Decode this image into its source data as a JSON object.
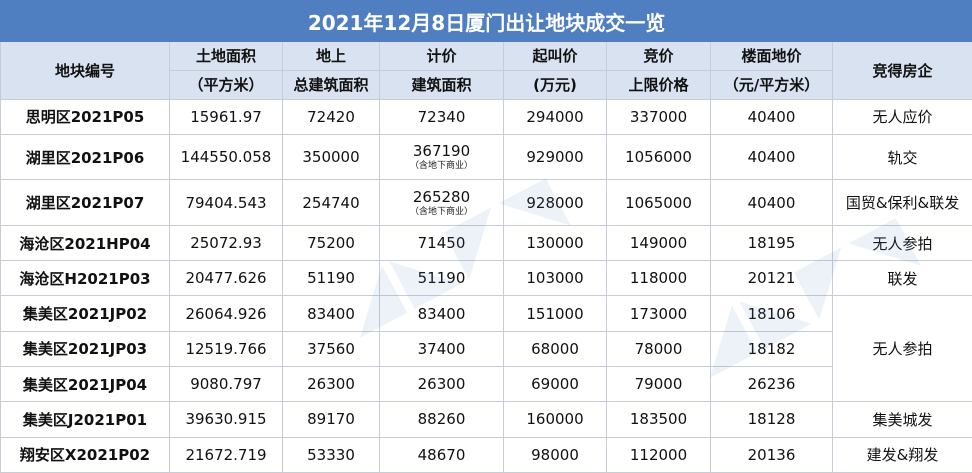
{
  "title": "2021年12月8日厦门出让地块成交一览",
  "headers": [
    {
      "line1": "地块编号",
      "line2": ""
    },
    {
      "line1": "土地面积",
      "line2": "（平方米）"
    },
    {
      "line1": "地上",
      "line2": "总建筑面积"
    },
    {
      "line1": "计价",
      "line2": "建筑面积"
    },
    {
      "line1": "起叫价",
      "line2": "(万元)"
    },
    {
      "line1": "竞价",
      "line2": "上限价格"
    },
    {
      "line1": "楼面地价",
      "line2": "（元/平方米）"
    },
    {
      "line1": "竞得房企",
      "line2": ""
    }
  ],
  "rows": [
    {
      "code": "思明区2021P05",
      "area": "15961.97",
      "gfa": "72420",
      "priced": "72340",
      "priced_note": "",
      "start": "294000",
      "cap": "337000",
      "floor": "40400",
      "winner": "无人应价"
    },
    {
      "code": "湖里区2021P06",
      "area": "144550.058",
      "gfa": "350000",
      "priced": "367190",
      "priced_note": "（含地下商业）",
      "start": "929000",
      "cap": "1056000",
      "floor": "40400",
      "winner": "轨交"
    },
    {
      "code": "湖里区2021P07",
      "area": "79404.543",
      "gfa": "254740",
      "priced": "265280",
      "priced_note": "（含地下商业）",
      "start": "928000",
      "cap": "1065000",
      "floor": "40400",
      "winner": "国贸&保利&联发"
    },
    {
      "code": "海沧区2021HP04",
      "area": "25072.93",
      "gfa": "75200",
      "priced": "71450",
      "priced_note": "",
      "start": "130000",
      "cap": "149000",
      "floor": "18195",
      "winner": "无人参拍"
    },
    {
      "code": "海沧区H2021P03",
      "area": "20477.626",
      "gfa": "51190",
      "priced": "51190",
      "priced_note": "",
      "start": "103000",
      "cap": "118000",
      "floor": "20121",
      "winner": "联发"
    },
    {
      "code": "集美区2021JP02",
      "area": "26064.926",
      "gfa": "83400",
      "priced": "83400",
      "priced_note": "",
      "start": "151000",
      "cap": "173000",
      "floor": "18106",
      "winner": "无人参拍"
    },
    {
      "code": "集美区2021JP03",
      "area": "12519.766",
      "gfa": "37560",
      "priced": "37400",
      "priced_note": "",
      "start": "68000",
      "cap": "78000",
      "floor": "18182",
      "winner": ""
    },
    {
      "code": "集美区2021JP04",
      "area": "9080.797",
      "gfa": "26300",
      "priced": "26300",
      "priced_note": "",
      "start": "69000",
      "cap": "79000",
      "floor": "26236",
      "winner": ""
    },
    {
      "code": "集美区J2021P01",
      "area": "39630.915",
      "gfa": "89170",
      "priced": "88260",
      "priced_note": "",
      "start": "160000",
      "cap": "183500",
      "floor": "18128",
      "winner": "集美城发"
    },
    {
      "code": "翔安区X2021P02",
      "area": "21672.719",
      "gfa": "53330",
      "priced": "48670",
      "priced_note": "",
      "start": "98000",
      "cap": "112000",
      "floor": "20136",
      "winner": "建发&翔发"
    }
  ]
}
